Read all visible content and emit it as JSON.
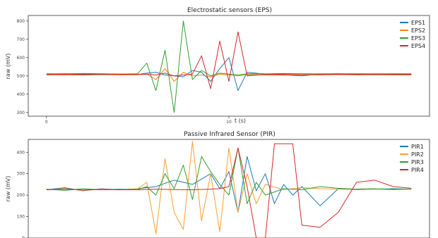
{
  "chart_data": [
    {
      "type": "line",
      "title": "Electrostatic sensors (EPS)",
      "xlabel": "t (s)",
      "ylabel": "raw (mV)",
      "xlim": [
        -1,
        21
      ],
      "ylim": [
        280,
        830
      ],
      "x_ticks": [
        0,
        10
      ],
      "y_ticks": [
        300,
        400,
        500,
        600,
        700,
        800
      ],
      "grid": false,
      "legend": "top-right",
      "series": [
        {
          "name": "EPS1",
          "color": "#1f77b4",
          "x": [
            0,
            1,
            2,
            3,
            4,
            5,
            5.5,
            6,
            6.5,
            7,
            7.5,
            8,
            8.5,
            9,
            9.5,
            10,
            10.5,
            11,
            12,
            13,
            14,
            15,
            16,
            17,
            18,
            19,
            20
          ],
          "y": [
            510,
            512,
            509,
            511,
            510,
            508,
            515,
            520,
            505,
            500,
            495,
            530,
            520,
            470,
            540,
            600,
            420,
            520,
            510,
            505,
            500,
            510,
            512,
            509,
            511,
            510,
            510
          ]
        },
        {
          "name": "EPS2",
          "color": "#ff7f0e",
          "x": [
            0,
            1,
            2,
            3,
            4,
            5,
            5.5,
            6,
            6.5,
            7,
            7.5,
            8,
            8.5,
            9,
            9.5,
            10,
            10.5,
            11,
            12,
            13,
            14,
            15,
            16,
            17,
            18,
            19,
            20
          ],
          "y": [
            505,
            506,
            504,
            507,
            505,
            506,
            510,
            480,
            540,
            470,
            520,
            500,
            505,
            495,
            510,
            505,
            500,
            507,
            505,
            504,
            506,
            505,
            507,
            505,
            506,
            505,
            505
          ]
        },
        {
          "name": "EPS3",
          "color": "#2ca02c",
          "x": [
            0,
            1,
            2,
            3,
            4,
            5,
            5.5,
            6,
            6.5,
            7,
            7.5,
            8,
            8.5,
            9,
            9.5,
            10,
            10.5,
            11,
            12,
            13,
            14,
            15,
            16,
            17,
            18,
            19,
            20
          ],
          "y": [
            512,
            511,
            513,
            512,
            510,
            512,
            570,
            420,
            640,
            300,
            800,
            480,
            530,
            500,
            515,
            510,
            505,
            512,
            511,
            513,
            512,
            511,
            512,
            512,
            511,
            512,
            512
          ]
        },
        {
          "name": "EPS4",
          "color": "#d62728",
          "x": [
            0,
            1,
            2,
            3,
            4,
            5,
            5.5,
            6,
            6.5,
            7,
            7.5,
            8,
            8.5,
            9,
            9.5,
            10,
            10.5,
            11,
            12,
            13,
            14,
            15,
            16,
            17,
            18,
            19,
            20
          ],
          "y": [
            508,
            509,
            507,
            508,
            509,
            508,
            510,
            505,
            515,
            500,
            505,
            510,
            610,
            430,
            690,
            470,
            740,
            500,
            508,
            509,
            507,
            508,
            509,
            508,
            508,
            508,
            508
          ]
        }
      ]
    },
    {
      "type": "line",
      "title": "Passive Infrared Sensor (PIR)",
      "xlabel": "",
      "ylabel": "raw (mV)",
      "xlim": [
        -1,
        21
      ],
      "ylim": [
        0,
        460
      ],
      "y_ticks": [
        0,
        100,
        200,
        300,
        400
      ],
      "grid": false,
      "legend": "top-right",
      "series": [
        {
          "name": "PIR1",
          "color": "#1f77b4",
          "x": [
            0,
            1,
            2,
            3,
            4,
            5,
            6,
            7,
            8,
            9,
            9.5,
            10,
            10.5,
            11,
            11.5,
            12,
            12.5,
            13,
            13.5,
            14,
            15,
            16,
            17,
            18,
            19,
            20
          ],
          "y": [
            225,
            235,
            220,
            230,
            225,
            230,
            240,
            270,
            250,
            300,
            230,
            310,
            120,
            380,
            220,
            300,
            160,
            250,
            200,
            240,
            150,
            230,
            225,
            228,
            230,
            228
          ]
        },
        {
          "name": "PIR2",
          "color": "#ff9d2e",
          "x": [
            0,
            1,
            2,
            3,
            4,
            5,
            5.5,
            6,
            6.5,
            7,
            7.5,
            8,
            8.5,
            9,
            9.5,
            10,
            10.5,
            11,
            11.5,
            12,
            13,
            14,
            15,
            16,
            17,
            18,
            19,
            20
          ],
          "y": [
            225,
            230,
            222,
            228,
            225,
            230,
            260,
            20,
            370,
            120,
            40,
            450,
            80,
            300,
            30,
            420,
            120,
            300,
            160,
            250,
            225,
            235,
            230,
            228,
            226,
            228,
            225,
            228
          ]
        },
        {
          "name": "PIR3",
          "color": "#2ca02c",
          "x": [
            0,
            1,
            2,
            3,
            4,
            5,
            5.5,
            6,
            6.5,
            7,
            7.5,
            8,
            8.5,
            9,
            9.5,
            10,
            10.5,
            11,
            11.5,
            12,
            13,
            14,
            15,
            16,
            17,
            18,
            19,
            20
          ],
          "y": [
            228,
            222,
            230,
            225,
            228,
            226,
            240,
            200,
            300,
            230,
            340,
            180,
            380,
            310,
            250,
            200,
            420,
            160,
            260,
            200,
            230,
            225,
            240,
            232,
            228,
            230,
            227,
            229
          ]
        },
        {
          "name": "PIR4",
          "color": "#d62728",
          "x": [
            0,
            1,
            2,
            3,
            4,
            5,
            6,
            7,
            8,
            9,
            9.5,
            10,
            10.5,
            11,
            11.5,
            12,
            12.5,
            13,
            13.5,
            14,
            15,
            16,
            17,
            18,
            19,
            20
          ],
          "y": [
            225,
            228,
            224,
            226,
            225,
            225,
            228,
            226,
            225,
            228,
            230,
            240,
            420,
            240,
            0,
            0,
            440,
            440,
            440,
            60,
            50,
            120,
            260,
            270,
            240,
            232
          ]
        }
      ]
    }
  ]
}
